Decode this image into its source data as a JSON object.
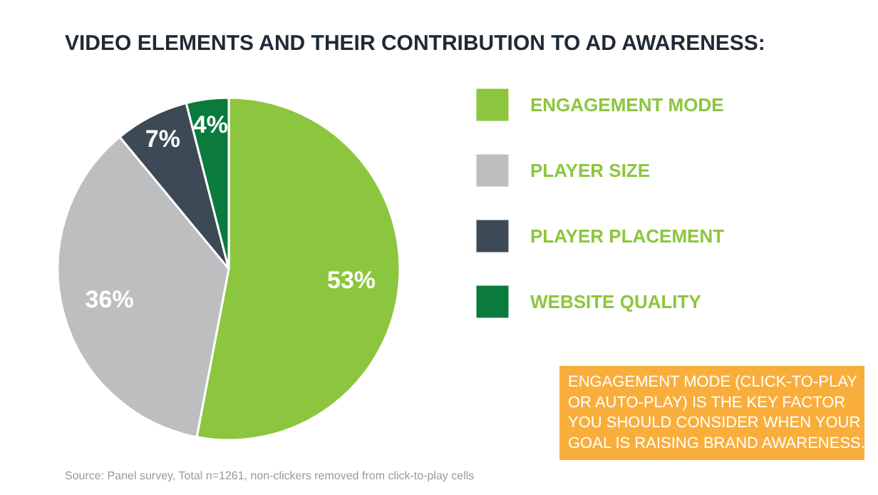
{
  "chart_data": {
    "type": "pie",
    "title": "VIDEO ELEMENTS AND THEIR CONTRIBUTION TO AD AWARENESS:",
    "categories": [
      "ENGAGEMENT MODE",
      "PLAYER SIZE",
      "PLAYER PLACEMENT",
      "WEBSITE QUALITY"
    ],
    "values": [
      53,
      36,
      7,
      4
    ],
    "colors": [
      "#8cc63e",
      "#bcbec0",
      "#3d4a55",
      "#0a7a3d"
    ],
    "value_labels": [
      "53%",
      "36%",
      "7%",
      "4%"
    ],
    "legend": "right",
    "annotations": [
      "ENGAGEMENT MODE (CLICK-TO-PLAY OR AUTO-PLAY) IS THE KEY FACTOR YOU SHOULD CONSIDER WHEN YOUR GOAL IS RAISING BRAND AWARENESS.",
      "Source: Panel survey, Total n=1261, non-clickers removed from click-to-play cells"
    ]
  }
}
